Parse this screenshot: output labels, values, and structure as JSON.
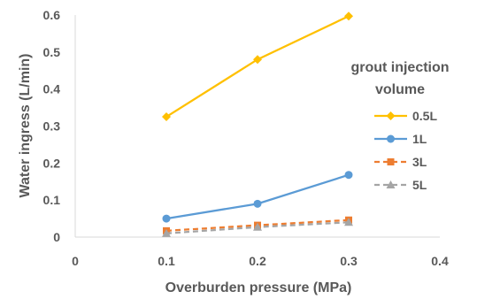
{
  "chart_data": {
    "type": "line",
    "title": "",
    "xlabel": "Overburden pressure (MPa)",
    "ylabel": "Water ingress (L/min)",
    "xlim": [
      0,
      0.4
    ],
    "ylim": [
      0,
      0.6
    ],
    "xticks": [
      "0",
      "0.1",
      "0.2",
      "0.3",
      "0.4"
    ],
    "yticks": [
      "0",
      "0.1",
      "0.2",
      "0.3",
      "0.4",
      "0.5",
      "0.6"
    ],
    "grid": false,
    "legend": {
      "title_line1": "grout injection",
      "title_line2": "volume",
      "position": "right"
    },
    "x": [
      0.1,
      0.2,
      0.3
    ],
    "series": [
      {
        "name": "0.5L",
        "values": [
          0.325,
          0.48,
          0.597
        ],
        "color": "#FFC000",
        "marker": "diamond",
        "dash": "solid"
      },
      {
        "name": "1L",
        "values": [
          0.05,
          0.09,
          0.168
        ],
        "color": "#5B9BD5",
        "marker": "circle",
        "dash": "solid"
      },
      {
        "name": "3L",
        "values": [
          0.017,
          0.032,
          0.046
        ],
        "color": "#ED7D31",
        "marker": "square",
        "dash": "dashed"
      },
      {
        "name": "5L",
        "values": [
          0.01,
          0.027,
          0.04
        ],
        "color": "#A5A5A5",
        "marker": "triangle",
        "dash": "dashed"
      }
    ]
  }
}
